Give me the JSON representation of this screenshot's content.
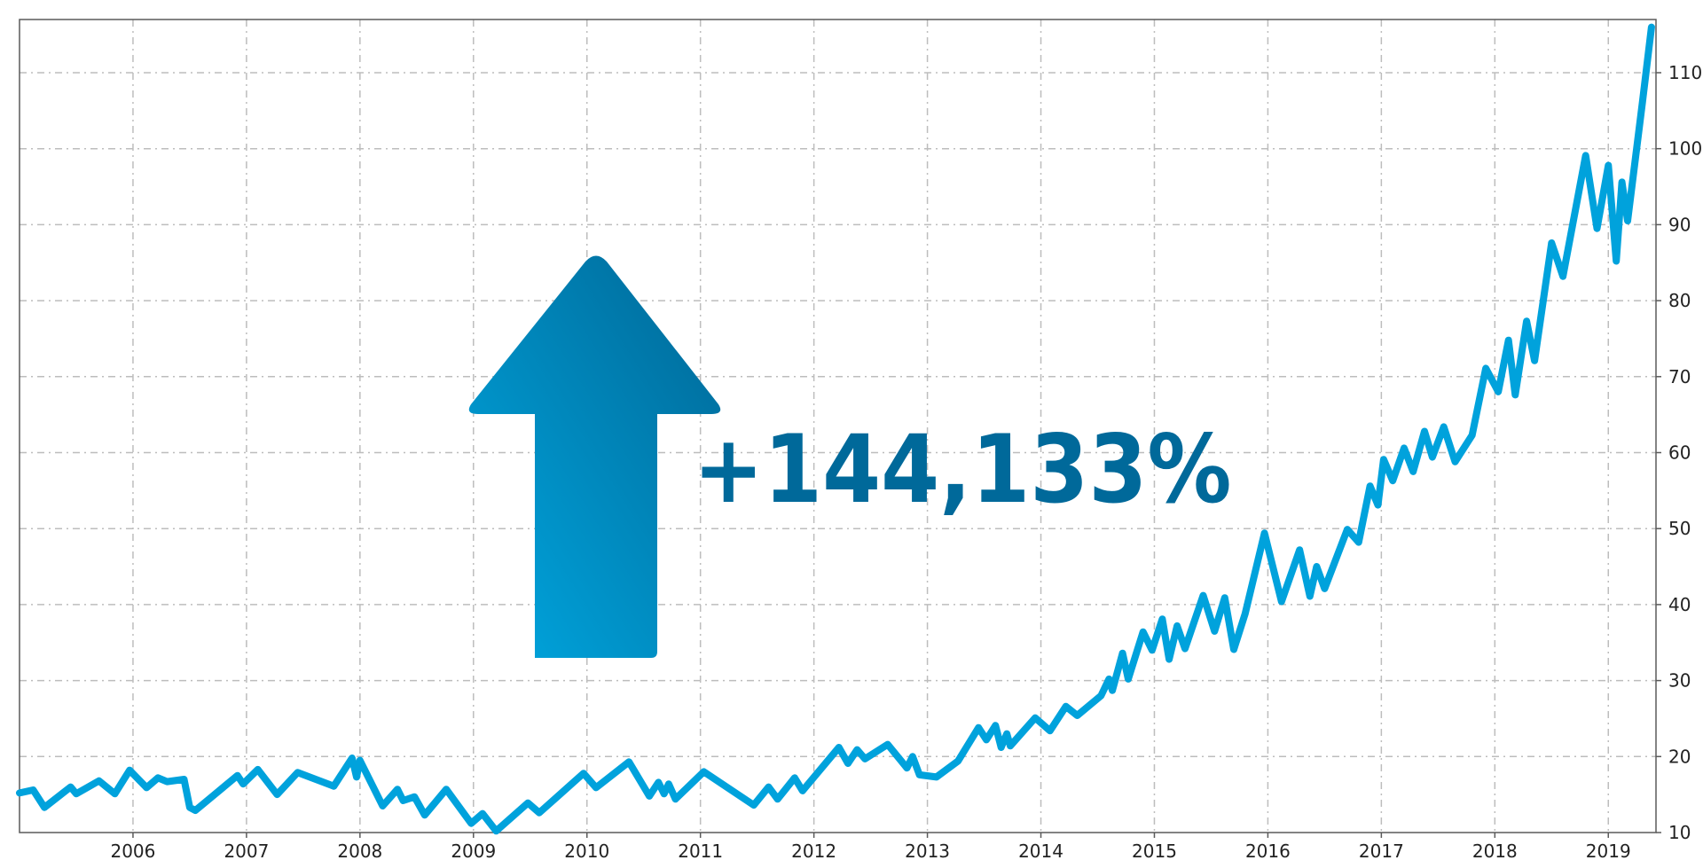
{
  "chart_data": {
    "type": "line",
    "title": "",
    "xlabel": "",
    "ylabel": "",
    "x_tick_labels": [
      "2006",
      "2007",
      "2008",
      "2009",
      "2010",
      "2011",
      "2012",
      "2013",
      "2014",
      "2015",
      "2016",
      "2017",
      "2018",
      "2019"
    ],
    "y_tick_labels": [
      "10",
      "20",
      "30",
      "40",
      "50",
      "60",
      "70",
      "80",
      "90",
      "100",
      "110"
    ],
    "xlim": [
      2005.0,
      2019.42
    ],
    "ylim": [
      10,
      117
    ],
    "y_axis_position": "right",
    "grid": true,
    "grid_style": "dashed",
    "line_color": "#00a2dc",
    "series": [
      {
        "values": [
          [
            2005.0,
            15.2
          ],
          [
            2005.12,
            15.6
          ],
          [
            2005.22,
            13.3
          ],
          [
            2005.45,
            16.0
          ],
          [
            2005.5,
            15.1
          ],
          [
            2005.7,
            16.8
          ],
          [
            2005.84,
            15.1
          ],
          [
            2005.97,
            18.2
          ],
          [
            2006.12,
            15.9
          ],
          [
            2006.22,
            17.2
          ],
          [
            2006.3,
            16.7
          ],
          [
            2006.45,
            17.0
          ],
          [
            2006.5,
            13.3
          ],
          [
            2006.55,
            12.9
          ],
          [
            2006.92,
            17.5
          ],
          [
            2006.97,
            16.4
          ],
          [
            2007.1,
            18.3
          ],
          [
            2007.27,
            15.0
          ],
          [
            2007.45,
            17.9
          ],
          [
            2007.77,
            16.1
          ],
          [
            2007.93,
            19.8
          ],
          [
            2007.97,
            17.3
          ],
          [
            2008.0,
            19.5
          ],
          [
            2008.2,
            13.5
          ],
          [
            2008.33,
            15.7
          ],
          [
            2008.38,
            14.2
          ],
          [
            2008.48,
            14.7
          ],
          [
            2008.57,
            12.3
          ],
          [
            2008.76,
            15.7
          ],
          [
            2008.98,
            11.2
          ],
          [
            2009.08,
            12.5
          ],
          [
            2009.2,
            10.2
          ],
          [
            2009.48,
            13.9
          ],
          [
            2009.58,
            12.6
          ],
          [
            2009.97,
            17.8
          ],
          [
            2010.08,
            15.9
          ],
          [
            2010.37,
            19.3
          ],
          [
            2010.55,
            14.8
          ],
          [
            2010.63,
            16.6
          ],
          [
            2010.68,
            15.1
          ],
          [
            2010.72,
            16.4
          ],
          [
            2010.78,
            14.4
          ],
          [
            2011.03,
            18.0
          ],
          [
            2011.47,
            13.6
          ],
          [
            2011.6,
            16.0
          ],
          [
            2011.68,
            14.4
          ],
          [
            2011.83,
            17.2
          ],
          [
            2011.9,
            15.5
          ],
          [
            2012.22,
            21.2
          ],
          [
            2012.3,
            19.1
          ],
          [
            2012.38,
            20.9
          ],
          [
            2012.45,
            19.7
          ],
          [
            2012.65,
            21.6
          ],
          [
            2012.82,
            18.5
          ],
          [
            2012.87,
            20.0
          ],
          [
            2012.93,
            17.6
          ],
          [
            2013.08,
            17.3
          ],
          [
            2013.27,
            19.4
          ],
          [
            2013.45,
            23.8
          ],
          [
            2013.52,
            22.2
          ],
          [
            2013.6,
            24.1
          ],
          [
            2013.65,
            21.2
          ],
          [
            2013.7,
            23.0
          ],
          [
            2013.73,
            21.4
          ],
          [
            2013.95,
            25.1
          ],
          [
            2014.08,
            23.4
          ],
          [
            2014.22,
            26.6
          ],
          [
            2014.32,
            25.4
          ],
          [
            2014.53,
            28.0
          ],
          [
            2014.6,
            30.2
          ],
          [
            2014.63,
            28.7
          ],
          [
            2014.72,
            33.6
          ],
          [
            2014.77,
            30.2
          ],
          [
            2014.9,
            36.4
          ],
          [
            2014.98,
            34.0
          ],
          [
            2015.07,
            38.1
          ],
          [
            2015.13,
            32.8
          ],
          [
            2015.2,
            37.2
          ],
          [
            2015.27,
            34.2
          ],
          [
            2015.43,
            41.2
          ],
          [
            2015.53,
            36.5
          ],
          [
            2015.62,
            40.9
          ],
          [
            2015.7,
            34.1
          ],
          [
            2015.8,
            38.8
          ],
          [
            2015.97,
            49.4
          ],
          [
            2016.12,
            40.4
          ],
          [
            2016.28,
            47.2
          ],
          [
            2016.37,
            41.1
          ],
          [
            2016.43,
            45.0
          ],
          [
            2016.5,
            42.1
          ],
          [
            2016.7,
            49.9
          ],
          [
            2016.8,
            48.2
          ],
          [
            2016.9,
            55.6
          ],
          [
            2016.97,
            53.1
          ],
          [
            2017.02,
            59.1
          ],
          [
            2017.1,
            56.3
          ],
          [
            2017.2,
            60.6
          ],
          [
            2017.28,
            57.5
          ],
          [
            2017.38,
            62.8
          ],
          [
            2017.45,
            59.4
          ],
          [
            2017.55,
            63.4
          ],
          [
            2017.65,
            58.8
          ],
          [
            2017.8,
            62.3
          ],
          [
            2017.92,
            71.1
          ],
          [
            2018.03,
            68.0
          ],
          [
            2018.12,
            74.8
          ],
          [
            2018.18,
            67.6
          ],
          [
            2018.28,
            77.3
          ],
          [
            2018.35,
            72.1
          ],
          [
            2018.5,
            87.6
          ],
          [
            2018.6,
            83.2
          ],
          [
            2018.8,
            99.1
          ],
          [
            2018.9,
            89.5
          ],
          [
            2019.0,
            97.8
          ],
          [
            2019.07,
            85.2
          ],
          [
            2019.12,
            95.6
          ],
          [
            2019.17,
            90.5
          ],
          [
            2019.3,
            106.0
          ],
          [
            2019.38,
            116.0
          ]
        ]
      }
    ],
    "annotations": [
      {
        "type": "arrow-up",
        "text": "+144,133%",
        "color": "#00699a",
        "gradient": [
          "#00a8e1",
          "#006796"
        ]
      }
    ]
  }
}
